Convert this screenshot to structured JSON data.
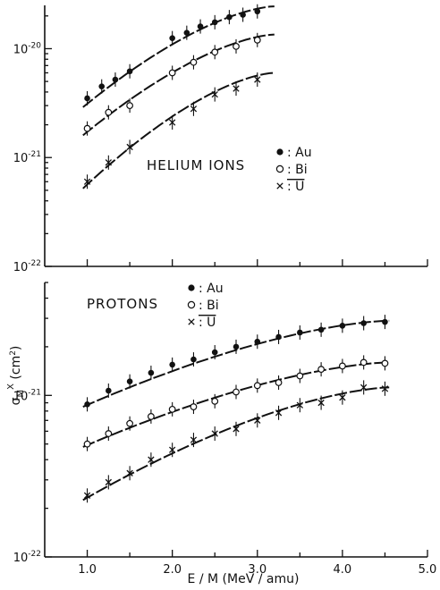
{
  "chart_data": [
    {
      "type": "scatter",
      "panel_label": "HELIUM IONS",
      "ylabel": "",
      "yscale": "log",
      "ylim": [
        1e-22,
        2.5e-20
      ],
      "xlim": [
        0.5,
        5.0
      ],
      "show_x_tick_labels": false,
      "yticks": [
        {
          "value": 1e-22,
          "mantissa": "10",
          "exp": "-22"
        },
        {
          "value": 1e-21,
          "mantissa": "10",
          "exp": "-21"
        },
        {
          "value": 1e-20,
          "mantissa": "10",
          "exp": "-20"
        }
      ],
      "legend": [
        {
          "marker": "filled-circle",
          "label": ": Au"
        },
        {
          "marker": "open-circle",
          "label": ": Bi"
        },
        {
          "marker": "cross",
          "label": ": U",
          "overline": true
        }
      ],
      "series": [
        {
          "name": "Au",
          "marker": "filled-circle",
          "x": [
            1.0,
            1.17,
            1.33,
            1.5,
            2.0,
            2.17,
            2.33,
            2.5,
            2.67,
            2.83,
            3.0
          ],
          "y": [
            3.5e-21,
            4.5e-21,
            5.2e-21,
            6.2e-21,
            1.25e-20,
            1.4e-20,
            1.6e-20,
            1.75e-20,
            1.95e-20,
            2.05e-20,
            2.2e-20
          ],
          "curve_x": [
            0.95,
            3.2
          ],
          "curve_y": [
            2.9e-21,
            2.45e-20
          ]
        },
        {
          "name": "Bi",
          "marker": "open-circle",
          "x": [
            1.0,
            1.25,
            1.5,
            2.0,
            2.25,
            2.5,
            2.75,
            3.0
          ],
          "y": [
            1.85e-21,
            2.6e-21,
            3e-21,
            6e-21,
            7.5e-21,
            9.3e-21,
            1.05e-20,
            1.2e-20
          ],
          "curve_x": [
            0.95,
            3.2
          ],
          "curve_y": [
            1.6e-21,
            1.35e-20
          ]
        },
        {
          "name": "U",
          "marker": "cross",
          "x": [
            1.0,
            1.25,
            1.5,
            2.0,
            2.25,
            2.5,
            2.75,
            3.0
          ],
          "y": [
            6e-22,
            9e-22,
            1.25e-21,
            2.1e-21,
            2.8e-21,
            3.8e-21,
            4.3e-21,
            5.2e-21
          ],
          "curve_x": [
            0.95,
            3.2
          ],
          "curve_y": [
            5.2e-22,
            6e-21
          ]
        }
      ]
    },
    {
      "type": "scatter",
      "panel_label": "PROTONS",
      "xlabel": "E / M    (MeV / amu)",
      "ylabel_main": "σ",
      "ylabel_sub": "M",
      "ylabel_sup": "X",
      "ylabel_rest": " (cm",
      "ylabel_unit_sup": "2",
      "ylabel_close": ")",
      "yscale": "log",
      "ylim": [
        1e-22,
        5e-21
      ],
      "xlim": [
        0.5,
        5.0
      ],
      "xticks": [
        {
          "value": 1.0,
          "label": "1.0"
        },
        {
          "value": 2.0,
          "label": "2.0"
        },
        {
          "value": 3.0,
          "label": "3.0"
        },
        {
          "value": 4.0,
          "label": "4.0"
        },
        {
          "value": 5.0,
          "label": "5.0"
        }
      ],
      "yticks": [
        {
          "value": 1e-22,
          "mantissa": "10",
          "exp": "-22"
        },
        {
          "value": 1e-21,
          "mantissa": "10",
          "exp": "-21"
        }
      ],
      "legend": [
        {
          "marker": "filled-circle",
          "label": ": Au"
        },
        {
          "marker": "open-circle",
          "label": ": Bi"
        },
        {
          "marker": "cross",
          "label": ": U",
          "overline": true
        }
      ],
      "series": [
        {
          "name": "Au",
          "marker": "filled-circle",
          "x": [
            1.0,
            1.25,
            1.5,
            1.75,
            2.0,
            2.25,
            2.5,
            2.75,
            3.0,
            3.25,
            3.5,
            3.75,
            4.0,
            4.25,
            4.5
          ],
          "y": [
            8.8e-22,
            1.07e-21,
            1.22e-21,
            1.38e-21,
            1.55e-21,
            1.67e-21,
            1.85e-21,
            2e-21,
            2.15e-21,
            2.3e-21,
            2.45e-21,
            2.55e-21,
            2.7e-21,
            2.8e-21,
            2.85e-21
          ],
          "curve_x": [
            0.95,
            4.55
          ],
          "curve_y": [
            8.5e-22,
            2.9e-21
          ]
        },
        {
          "name": "Bi",
          "marker": "open-circle",
          "x": [
            1.0,
            1.25,
            1.5,
            1.75,
            2.0,
            2.25,
            2.5,
            2.75,
            3.0,
            3.25,
            3.5,
            3.75,
            4.0,
            4.25,
            4.5
          ],
          "y": [
            5e-22,
            5.8e-22,
            6.7e-22,
            7.4e-22,
            8.2e-22,
            8.5e-22,
            9.2e-22,
            1.05e-21,
            1.15e-21,
            1.2e-21,
            1.32e-21,
            1.45e-21,
            1.52e-21,
            1.6e-21,
            1.58e-21
          ],
          "curve_x": [
            0.95,
            4.55
          ],
          "curve_y": [
            4.8e-22,
            1.6e-21
          ]
        },
        {
          "name": "U",
          "marker": "cross",
          "x": [
            1.0,
            1.25,
            1.5,
            1.75,
            2.0,
            2.25,
            2.5,
            2.75,
            3.0,
            3.25,
            3.5,
            3.75,
            4.0,
            4.25,
            4.5
          ],
          "y": [
            2.4e-22,
            2.9e-22,
            3.3e-22,
            4e-22,
            4.6e-22,
            5.3e-22,
            5.8e-22,
            6.2e-22,
            7e-22,
            7.8e-22,
            8.7e-22,
            9e-22,
            9.7e-22,
            1.12e-21,
            1.1e-21
          ],
          "curve_x": [
            0.95,
            4.55
          ],
          "curve_y": [
            2.25e-22,
            1.12e-21
          ]
        }
      ]
    }
  ]
}
